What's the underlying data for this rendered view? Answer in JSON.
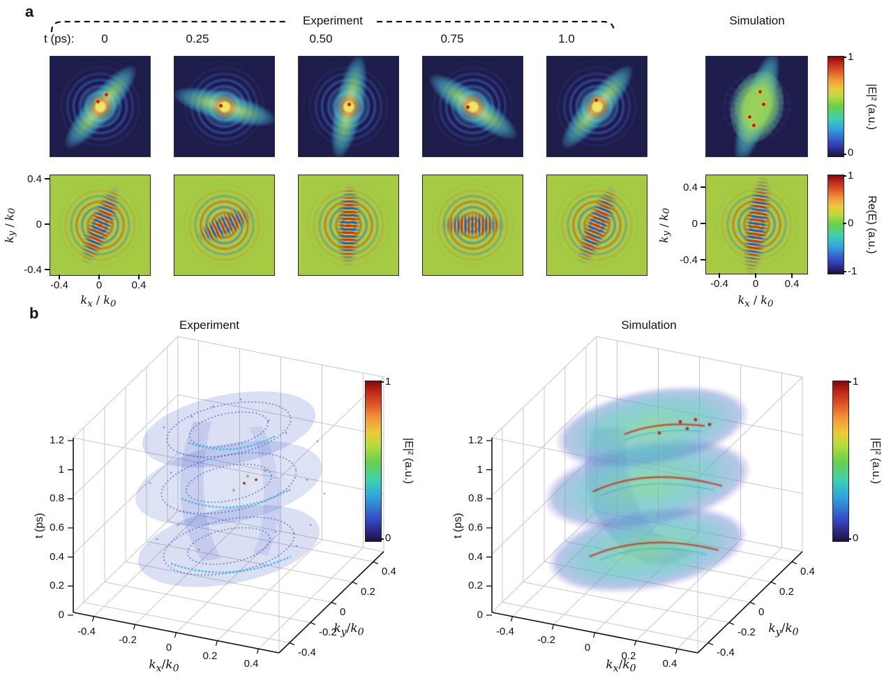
{
  "panel_a": {
    "label": "a",
    "experiment_brace_label": "Experiment",
    "simulation_title": "Simulation",
    "time_prefix": "t (ps):",
    "times": [
      "0",
      "0.25",
      "0.50",
      "0.75",
      "1.0"
    ],
    "axes2d": {
      "x_label_html": "<i>k<sub>x</sub></i> / <i>k<sub>0</sub></i>",
      "y_label_html": "<i>k<sub>y</sub></i> / <i>k<sub>0</sub></i>",
      "x_ticks": [
        "-0.4",
        "0",
        "0.4"
      ],
      "y_ticks": [
        "0.4",
        "0",
        "-0.4"
      ]
    },
    "colorbar_intensity": {
      "label": "|E|² (a.u.)",
      "tick_top": "1",
      "tick_bottom": "0"
    },
    "colorbar_field": {
      "label": "Re(E) (a.u.)",
      "tick_top": "1",
      "tick_mid": "0",
      "tick_bottom": "-1"
    }
  },
  "panel_b": {
    "label": "b",
    "titles": [
      "Experiment",
      "Simulation"
    ],
    "axes3d": {
      "z_label": "t (ps)",
      "z_ticks": [
        "0",
        "0.2",
        "0.4",
        "0.6",
        "0.8",
        "1",
        "1.2"
      ],
      "x_label_html": "<i>k<sub>x</sub></i>/<i>k<sub>0</sub></i>",
      "x_ticks": [
        "-0.4",
        "-0.2",
        "0",
        "0.2",
        "0.4"
      ],
      "y_label_html": "<i>k<sub>y</sub></i>/<i>k<sub>0</sub></i>",
      "y_ticks": [
        "-0.4",
        "-0.2",
        "0",
        "0.2",
        "0.4"
      ]
    },
    "colorbar": {
      "label": "|E|² (a.u.)",
      "tick_top": "1",
      "tick_bottom": "0"
    }
  },
  "colors": {
    "colormap_jet_like": [
      "#1c1044",
      "#3746c2",
      "#2fa7dd",
      "#3fcfb0",
      "#6ccf4a",
      "#b8dc3c",
      "#eec83a",
      "#f1963a",
      "#dd5226",
      "#7a0a0e"
    ],
    "intensity_map_background": "#1e1c4a",
    "field_map_background": "#a6cb43"
  }
}
